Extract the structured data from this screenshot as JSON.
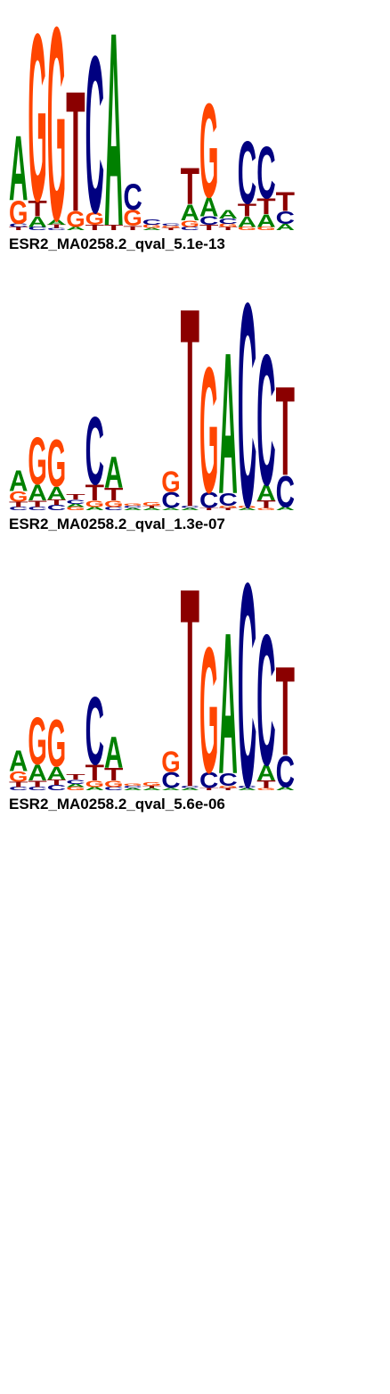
{
  "chart_data": [
    {
      "type": "logo",
      "title": "ESR2_MA0258.2_qval_5.1e-13",
      "ylim": [
        0,
        2
      ],
      "colors": {
        "A": "#008000",
        "C": "#000080",
        "G": "#ff4500",
        "T": "#8b0000"
      },
      "stacks": [
        [
          [
            "T",
            0.03
          ],
          [
            "C",
            0.03
          ],
          [
            "G",
            0.22
          ],
          [
            "A",
            0.62
          ]
        ],
        [
          [
            "C",
            0.03
          ],
          [
            "A",
            0.1
          ],
          [
            "T",
            0.15
          ],
          [
            "G",
            1.6
          ]
        ],
        [
          [
            "C",
            0.02
          ],
          [
            "T",
            0.03
          ],
          [
            "A",
            0.05
          ],
          [
            "G",
            1.85
          ]
        ],
        [
          [
            "A",
            0.03
          ],
          [
            "G",
            0.15
          ],
          [
            "T",
            1.15
          ]
        ],
        [
          [
            "T",
            0.05
          ],
          [
            "G",
            0.12
          ],
          [
            "C",
            1.5
          ]
        ],
        [
          [
            "T",
            0.05
          ],
          [
            "A",
            1.85
          ]
        ],
        [
          [
            "T",
            0.04
          ],
          [
            "G",
            0.15
          ],
          [
            "C",
            0.25
          ]
        ],
        [
          [
            "A",
            0.02
          ],
          [
            "G",
            0.03
          ],
          [
            "C",
            0.05
          ]
        ],
        [
          [
            "T",
            0.02
          ],
          [
            "G",
            0.02
          ],
          [
            "C",
            0.02
          ]
        ],
        [
          [
            "C",
            0.03
          ],
          [
            "G",
            0.06
          ],
          [
            "A",
            0.15
          ],
          [
            "T",
            0.35
          ]
        ],
        [
          [
            "T",
            0.05
          ],
          [
            "C",
            0.08
          ],
          [
            "A",
            0.18
          ],
          [
            "G",
            0.9
          ]
        ],
        [
          [
            "T",
            0.03
          ],
          [
            "G",
            0.03
          ],
          [
            "C",
            0.05
          ],
          [
            "A",
            0.08
          ]
        ],
        [
          [
            "G",
            0.03
          ],
          [
            "A",
            0.1
          ],
          [
            "T",
            0.12
          ],
          [
            "C",
            0.6
          ]
        ],
        [
          [
            "G",
            0.03
          ],
          [
            "A",
            0.12
          ],
          [
            "T",
            0.15
          ],
          [
            "C",
            0.5
          ]
        ],
        [
          [
            "A",
            0.06
          ],
          [
            "C",
            0.12
          ],
          [
            "T",
            0.18
          ]
        ]
      ]
    },
    {
      "type": "logo",
      "title": "ESR2_MA0258.2_qval_1.3e-07",
      "ylim": [
        0,
        2
      ],
      "colors": {
        "A": "#008000",
        "C": "#000080",
        "G": "#ff4500",
        "T": "#8b0000"
      },
      "stacks": [
        [
          [
            "C",
            0.03
          ],
          [
            "T",
            0.05
          ],
          [
            "G",
            0.1
          ],
          [
            "A",
            0.2
          ]
        ],
        [
          [
            "C",
            0.03
          ],
          [
            "T",
            0.06
          ],
          [
            "A",
            0.15
          ],
          [
            "G",
            0.45
          ]
        ],
        [
          [
            "C",
            0.05
          ],
          [
            "T",
            0.05
          ],
          [
            "A",
            0.12
          ],
          [
            "G",
            0.45
          ]
        ],
        [
          [
            "G",
            0.03
          ],
          [
            "A",
            0.03
          ],
          [
            "C",
            0.04
          ],
          [
            "T",
            0.05
          ]
        ],
        [
          [
            "A",
            0.03
          ],
          [
            "G",
            0.06
          ],
          [
            "T",
            0.15
          ],
          [
            "C",
            0.65
          ]
        ],
        [
          [
            "C",
            0.03
          ],
          [
            "G",
            0.06
          ],
          [
            "T",
            0.12
          ],
          [
            "A",
            0.3
          ]
        ],
        [
          [
            "A",
            0.02
          ],
          [
            "C",
            0.02
          ],
          [
            "G",
            0.02
          ]
        ],
        [
          [
            "A",
            0.02
          ],
          [
            "T",
            0.02
          ],
          [
            "G",
            0.03
          ]
        ],
        [
          [
            "A",
            0.02
          ],
          [
            "C",
            0.15
          ],
          [
            "G",
            0.2
          ]
        ],
        [
          [
            "A",
            0.02
          ],
          [
            "C",
            0.02
          ],
          [
            "T",
            1.9
          ]
        ],
        [
          [
            "T",
            0.02
          ],
          [
            "C",
            0.15
          ],
          [
            "G",
            1.2
          ]
        ],
        [
          [
            "T",
            0.02
          ],
          [
            "G",
            0.02
          ],
          [
            "C",
            0.12
          ],
          [
            "A",
            1.35
          ]
        ],
        [
          [
            "A",
            0.02
          ],
          [
            "G",
            0.02
          ],
          [
            "C",
            1.95
          ]
        ],
        [
          [
            "G",
            0.02
          ],
          [
            "T",
            0.07
          ],
          [
            "A",
            0.15
          ],
          [
            "C",
            1.25
          ]
        ],
        [
          [
            "A",
            0.03
          ],
          [
            "C",
            0.3
          ],
          [
            "T",
            0.85
          ]
        ]
      ]
    },
    {
      "type": "logo",
      "title": "ESR2_MA0258.2_qval_5.6e-06",
      "ylim": [
        0,
        2
      ],
      "colors": {
        "A": "#008000",
        "C": "#000080",
        "G": "#ff4500",
        "T": "#8b0000"
      },
      "stacks": [
        [
          [
            "C",
            0.03
          ],
          [
            "T",
            0.05
          ],
          [
            "G",
            0.1
          ],
          [
            "A",
            0.2
          ]
        ],
        [
          [
            "C",
            0.03
          ],
          [
            "T",
            0.06
          ],
          [
            "A",
            0.15
          ],
          [
            "G",
            0.45
          ]
        ],
        [
          [
            "C",
            0.05
          ],
          [
            "T",
            0.05
          ],
          [
            "A",
            0.12
          ],
          [
            "G",
            0.45
          ]
        ],
        [
          [
            "G",
            0.03
          ],
          [
            "A",
            0.03
          ],
          [
            "C",
            0.04
          ],
          [
            "T",
            0.05
          ]
        ],
        [
          [
            "A",
            0.03
          ],
          [
            "G",
            0.06
          ],
          [
            "T",
            0.15
          ],
          [
            "C",
            0.65
          ]
        ],
        [
          [
            "C",
            0.03
          ],
          [
            "G",
            0.06
          ],
          [
            "T",
            0.12
          ],
          [
            "A",
            0.3
          ]
        ],
        [
          [
            "A",
            0.02
          ],
          [
            "C",
            0.02
          ],
          [
            "G",
            0.02
          ]
        ],
        [
          [
            "A",
            0.02
          ],
          [
            "T",
            0.02
          ],
          [
            "G",
            0.03
          ]
        ],
        [
          [
            "A",
            0.02
          ],
          [
            "C",
            0.15
          ],
          [
            "G",
            0.2
          ]
        ],
        [
          [
            "A",
            0.02
          ],
          [
            "C",
            0.02
          ],
          [
            "T",
            1.9
          ]
        ],
        [
          [
            "T",
            0.02
          ],
          [
            "C",
            0.15
          ],
          [
            "G",
            1.2
          ]
        ],
        [
          [
            "T",
            0.02
          ],
          [
            "G",
            0.02
          ],
          [
            "C",
            0.12
          ],
          [
            "A",
            1.35
          ]
        ],
        [
          [
            "A",
            0.02
          ],
          [
            "C",
            0.02
          ],
          [
            "C",
            1.95
          ]
        ],
        [
          [
            "G",
            0.02
          ],
          [
            "T",
            0.07
          ],
          [
            "A",
            0.15
          ],
          [
            "C",
            1.25
          ]
        ],
        [
          [
            "A",
            0.03
          ],
          [
            "C",
            0.3
          ],
          [
            "T",
            0.85
          ]
        ]
      ]
    }
  ]
}
